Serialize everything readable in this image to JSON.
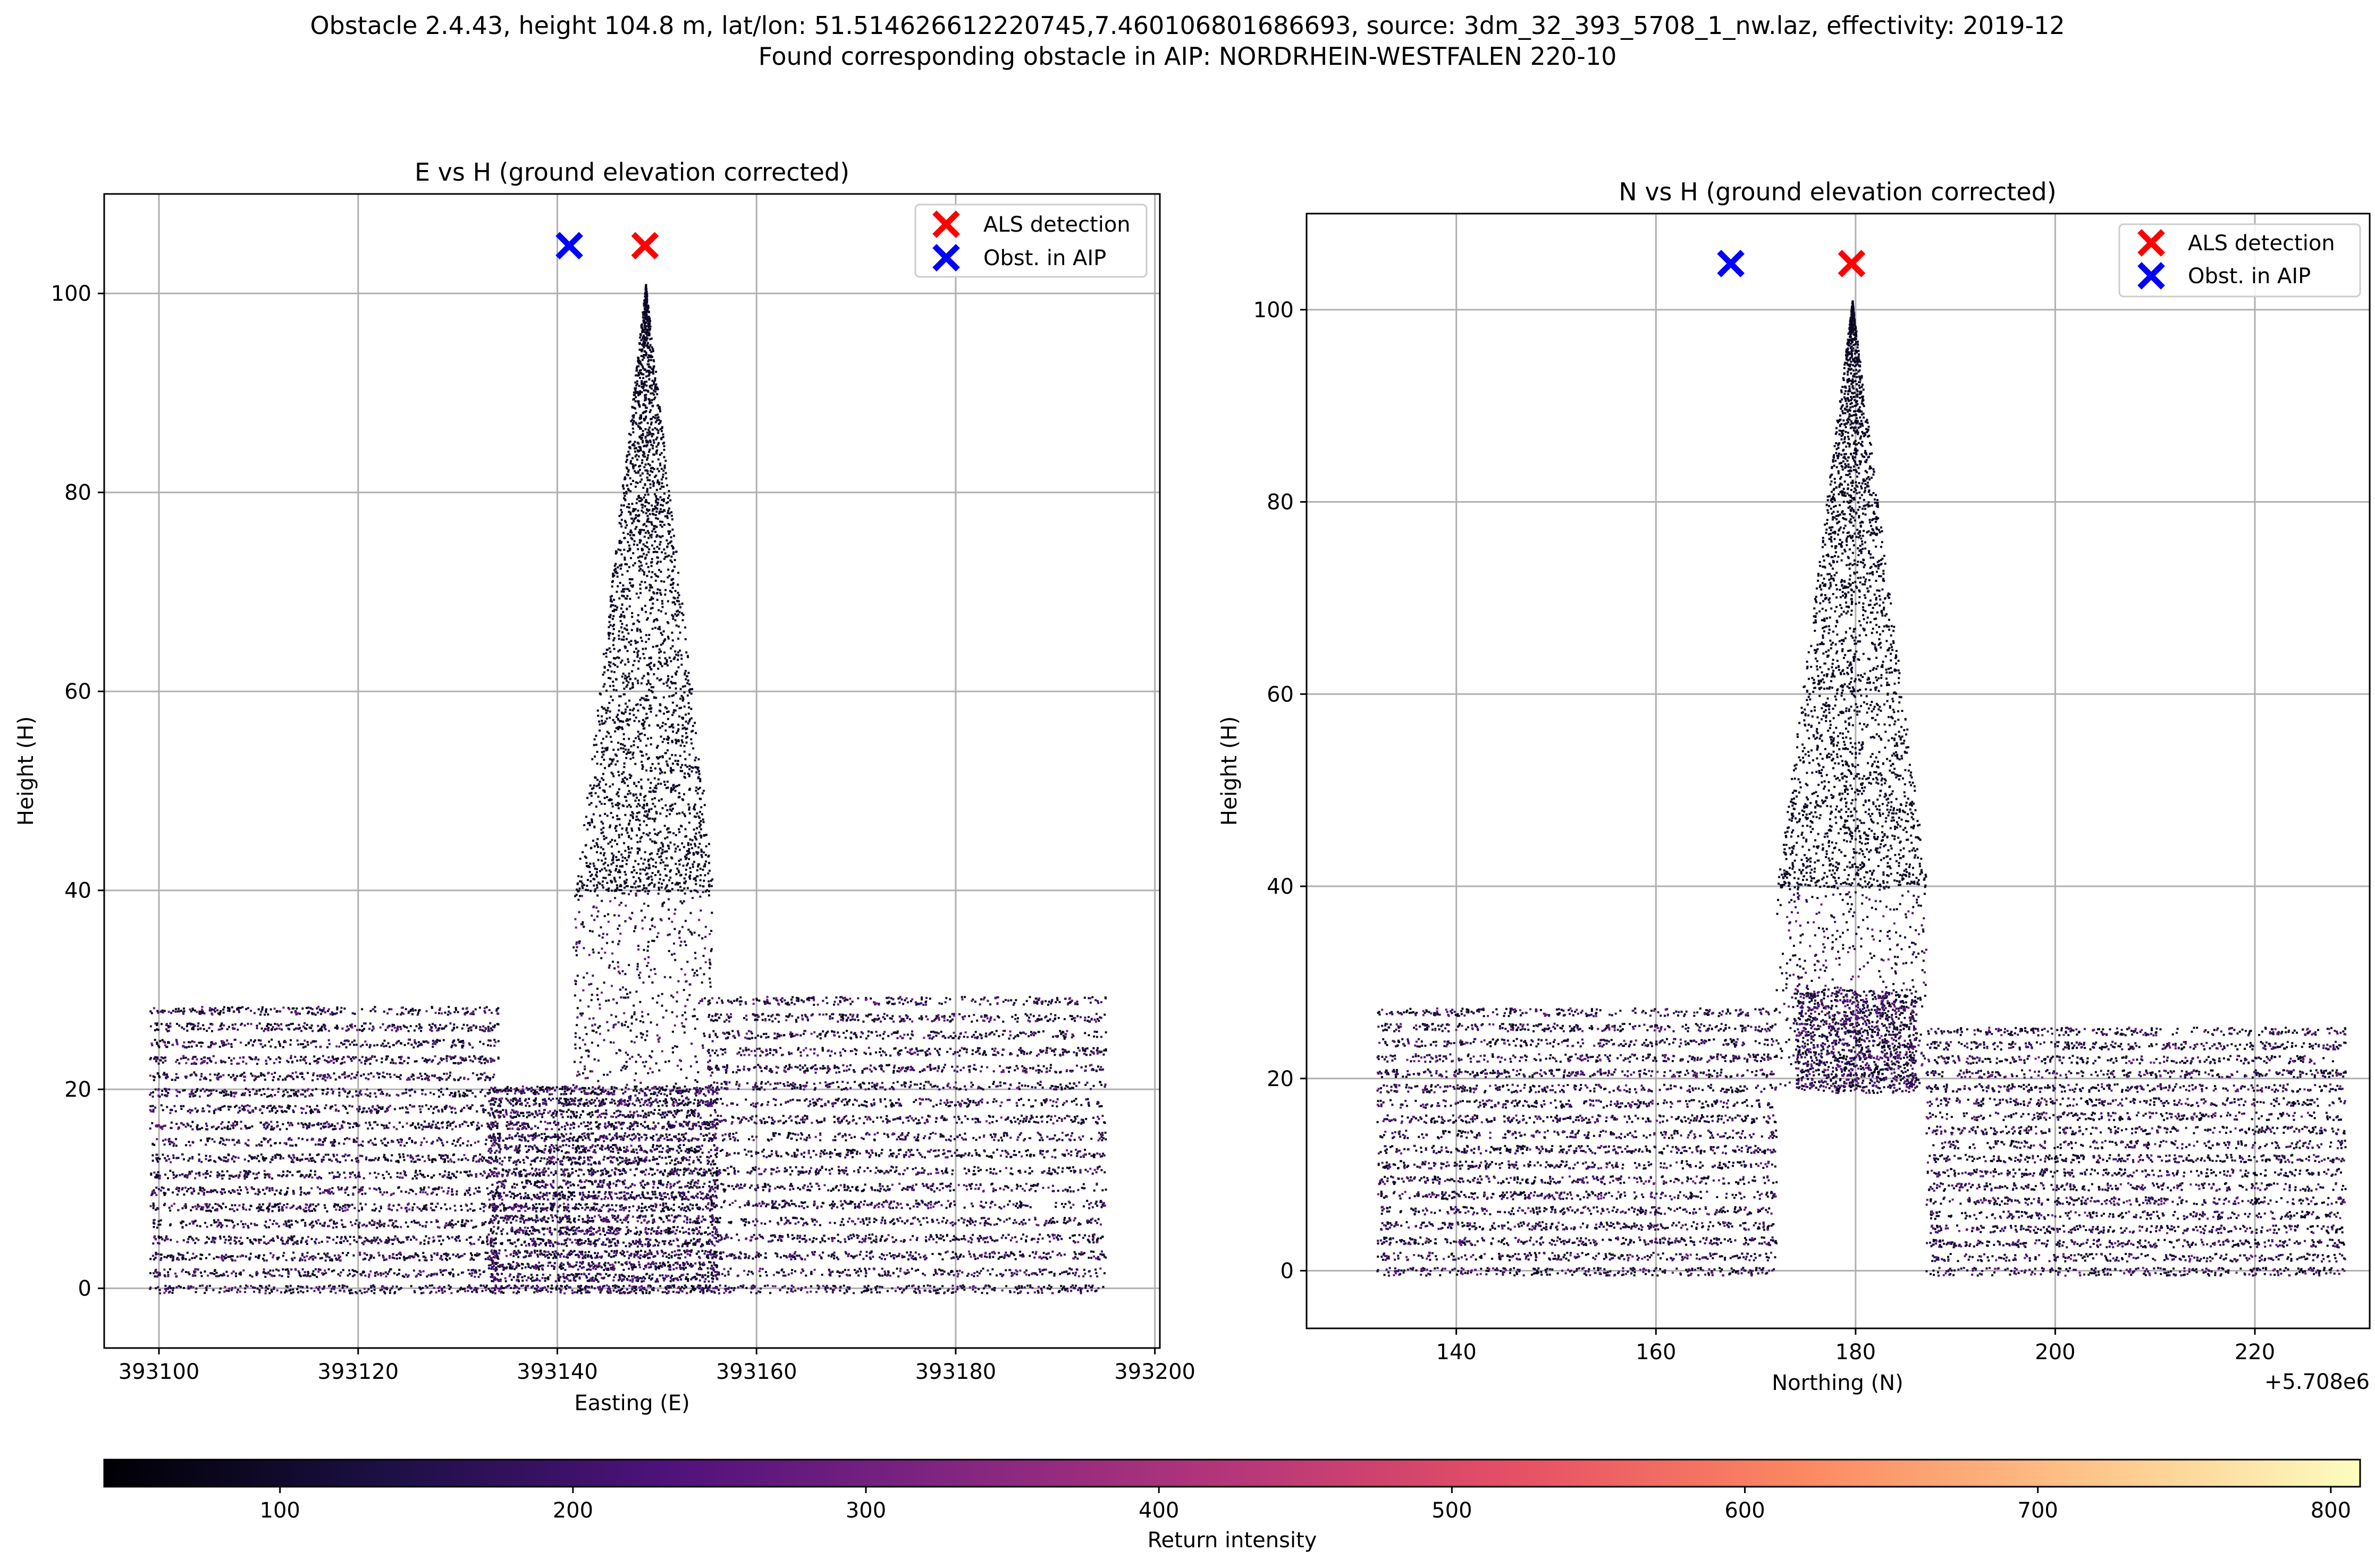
{
  "figure": {
    "suptitle_line1": "Obstacle 2.4.43, height 104.8 m, lat/lon: 51.514626612220745,7.460106801686693, source: 3dm_32_393_5708_1_nw.laz, effectivity: 2019-12",
    "suptitle_line2": "Found corresponding obstacle in AIP: NORDRHEIN-WESTFALEN 220-10"
  },
  "colors": {
    "als_marker": "#ff0000",
    "aip_marker": "#0000ff",
    "grid": "#b0b0b0",
    "points_dark": "#0b0724",
    "points_mid": "#3b0f70",
    "points_purple": "#6a1c81"
  },
  "chart_data": [
    {
      "type": "scatter",
      "title": "E vs H (ground elevation corrected)",
      "xlabel": "Easting (E)",
      "ylabel": "Height (H)",
      "xlim": [
        393094.5,
        393200.5
      ],
      "ylim": [
        -6,
        110
      ],
      "xticks": [
        393100,
        393120,
        393140,
        393160,
        393180,
        393200
      ],
      "xtick_labels": [
        "393100",
        "393120",
        "393140",
        "393160",
        "393180",
        "393200"
      ],
      "yticks": [
        0,
        20,
        40,
        60,
        80,
        100
      ],
      "ytick_labels": [
        "0",
        "20",
        "40",
        "60",
        "80",
        "100"
      ],
      "grid": true,
      "legend_position": "top-right",
      "series": [
        {
          "name": "ALS detection",
          "marker": "x",
          "color": "#ff0000",
          "x": [
            393148.8
          ],
          "y": [
            104.8
          ]
        },
        {
          "name": "Obst. in AIP",
          "marker": "x",
          "color": "#0000ff",
          "x": [
            393141.2
          ],
          "y": [
            104.8
          ]
        }
      ],
      "point_cloud": {
        "spire": {
          "x_range": [
            393141.5,
            393155.5
          ],
          "base_y": 40,
          "top_x": 393148.8,
          "top_y": 101
        },
        "tower": {
          "x_range": [
            393141.5,
            393155.5
          ],
          "y_range": [
            19,
            40
          ]
        },
        "left_building": {
          "x_range": [
            393099,
            393134
          ],
          "y_range": [
            0,
            28
          ]
        },
        "right_building": {
          "x_range": [
            393155,
            393195
          ],
          "y_range": [
            0,
            29
          ]
        },
        "middle_block": {
          "x_range": [
            393133,
            393156
          ],
          "y_range": [
            0,
            20
          ]
        }
      }
    },
    {
      "type": "scatter",
      "title": "N vs H (ground elevation corrected)",
      "xlabel": "Northing (N)",
      "ylabel": "Height (H)",
      "offset_label": "+5.708e6",
      "xlim": [
        5708125.0,
        5708231.5
      ],
      "ylim": [
        -6,
        110
      ],
      "xticks": [
        5708140,
        5708160,
        5708180,
        5708200,
        5708220
      ],
      "xtick_labels": [
        "140",
        "160",
        "180",
        "200",
        "220"
      ],
      "yticks": [
        0,
        20,
        40,
        60,
        80,
        100
      ],
      "ytick_labels": [
        "0",
        "20",
        "40",
        "60",
        "80",
        "100"
      ],
      "grid": true,
      "legend_position": "top-right",
      "series": [
        {
          "name": "ALS detection",
          "marker": "x",
          "color": "#ff0000",
          "x": [
            5708179.6
          ],
          "y": [
            104.8
          ]
        },
        {
          "name": "Obst. in AIP",
          "marker": "x",
          "color": "#0000ff",
          "x": [
            5708167.5
          ],
          "y": [
            104.8
          ]
        }
      ],
      "point_cloud": {
        "spire": {
          "x_range": [
            5708172,
            5708187
          ],
          "base_y": 40,
          "top_x": 5708179.6,
          "top_y": 101
        },
        "tower": {
          "x_range": [
            5708172,
            5708187
          ],
          "y_range": [
            19,
            40
          ]
        },
        "left_building": {
          "x_range": [
            5708132,
            5708172
          ],
          "y_range": [
            0,
            27
          ]
        },
        "right_building": {
          "x_range": [
            5708187,
            5708229
          ],
          "y_range": [
            0,
            25
          ]
        },
        "gable": {
          "x_range": [
            5708174,
            5708186
          ],
          "y_range": [
            19,
            29
          ]
        }
      }
    }
  ],
  "colorbar": {
    "label": "Return intensity",
    "range": [
      40,
      810
    ],
    "ticks": [
      100,
      200,
      300,
      400,
      500,
      600,
      700,
      800
    ],
    "tick_labels": [
      "100",
      "200",
      "300",
      "400",
      "500",
      "600",
      "700",
      "800"
    ],
    "colormap": "magma",
    "stops": [
      "#000004",
      "#1c1044",
      "#4f127b",
      "#812581",
      "#b5367a",
      "#e55064",
      "#fb8761",
      "#fec287",
      "#fcfdbf"
    ]
  }
}
